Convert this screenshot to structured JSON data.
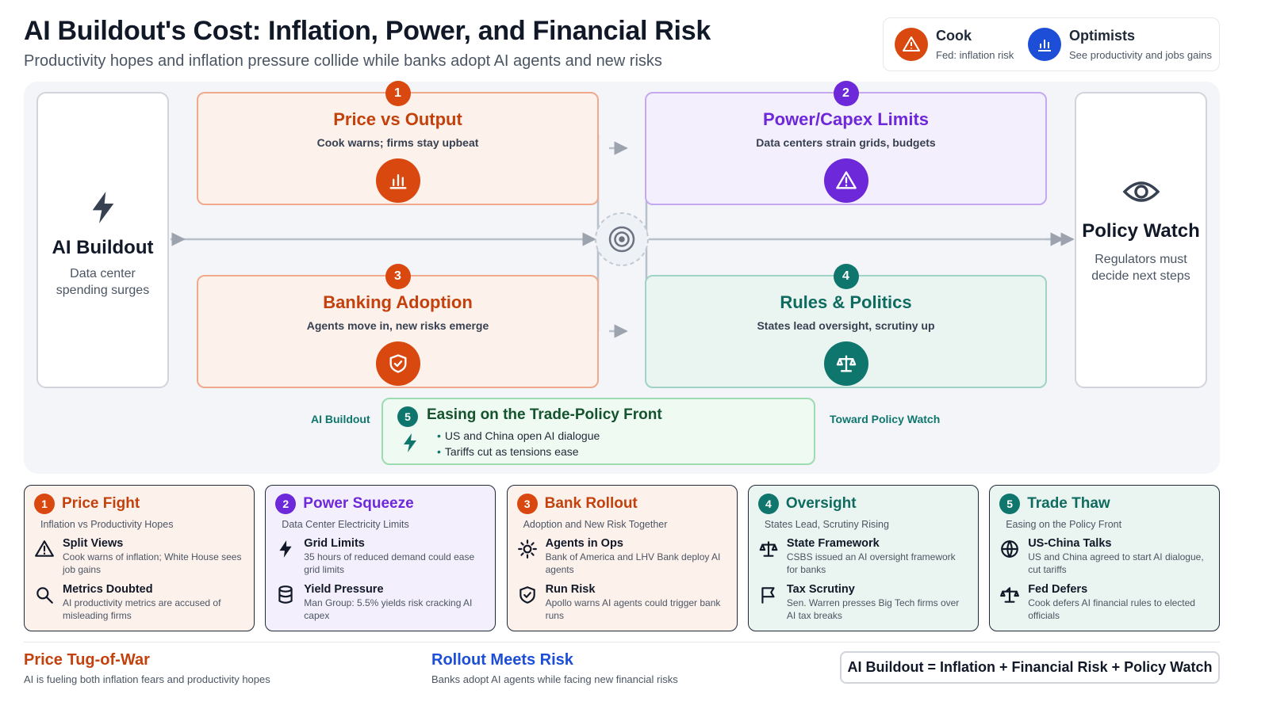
{
  "header": {
    "title": "AI Buildout's Cost: Inflation, Power, and Financial Risk",
    "subtitle": "Productivity hopes and inflation pressure collide while banks adopt AI agents and new risks"
  },
  "legend": [
    {
      "label": "Cook",
      "note": "Fed: inflation risk"
    },
    {
      "label": "Optimists",
      "note": "See productivity and jobs gains"
    }
  ],
  "flow": {
    "source": {
      "title": "AI Buildout",
      "text": "Data center spending surges"
    },
    "target": {
      "title": "Policy Watch",
      "text": "Regulators must decide next steps"
    },
    "steps": [
      {
        "number": 1,
        "title": "Price vs Output",
        "text": "Cook warns; firms stay upbeat"
      },
      {
        "number": 2,
        "title": "Power/Capex Limits",
        "text": "Data centers strain grids, budgets"
      },
      {
        "number": 3,
        "title": "Banking Adoption",
        "text": "Agents move in, new risks emerge"
      },
      {
        "number": 4,
        "title": "Rules & Politics",
        "text": "States lead oversight, scrutiny up"
      }
    ],
    "trade": {
      "number": 5,
      "title": "Easing on the Trade-Policy Front",
      "bullets": [
        "US and China open AI dialogue",
        "Tariffs cut as tensions ease"
      ],
      "left_label": "AI Buildout",
      "right_label": "Toward Policy Watch"
    }
  },
  "cards": [
    {
      "number": 1,
      "title": "Price Fight",
      "subtitle": "Inflation vs Productivity Hopes",
      "items": [
        {
          "title": "Split Views",
          "text": "Cook warns of inflation; White House sees job gains"
        },
        {
          "title": "Metrics Doubted",
          "text": "AI productivity metrics are accused of misleading firms"
        }
      ]
    },
    {
      "number": 2,
      "title": "Power Squeeze",
      "subtitle": "Data Center Electricity Limits",
      "items": [
        {
          "title": "Grid Limits",
          "text": "35 hours of reduced demand could ease grid limits"
        },
        {
          "title": "Yield Pressure",
          "text": "Man Group: 5.5% yields risk cracking AI capex"
        }
      ]
    },
    {
      "number": 3,
      "title": "Bank Rollout",
      "subtitle": "Adoption and New Risk Together",
      "items": [
        {
          "title": "Agents in Ops",
          "text": "Bank of America and LHV Bank deploy AI agents"
        },
        {
          "title": "Run Risk",
          "text": "Apollo warns AI agents could trigger bank runs"
        }
      ]
    },
    {
      "number": 4,
      "title": "Oversight",
      "subtitle": "States Lead, Scrutiny Rising",
      "items": [
        {
          "title": "State Framework",
          "text": "CSBS issued an AI oversight framework for banks"
        },
        {
          "title": "Tax Scrutiny",
          "text": "Sen. Warren presses Big Tech firms over AI tax breaks"
        }
      ]
    },
    {
      "number": 5,
      "title": "Trade Thaw",
      "subtitle": "Easing on the Policy Front",
      "items": [
        {
          "title": "US-China Talks",
          "text": "US and China agreed to start AI dialogue, cut tariffs"
        },
        {
          "title": "Fed Defers",
          "text": "Cook defers AI financial rules to elected officials"
        }
      ]
    }
  ],
  "footer": {
    "notes": [
      {
        "title": "Price Tug-of-War",
        "text": "AI is fueling both inflation fears and productivity hopes"
      },
      {
        "title": "Rollout Meets Risk",
        "text": "Banks adopt AI agents while facing new financial risks"
      }
    ],
    "formula": "AI Buildout = Inflation + Financial Risk + Policy Watch"
  }
}
